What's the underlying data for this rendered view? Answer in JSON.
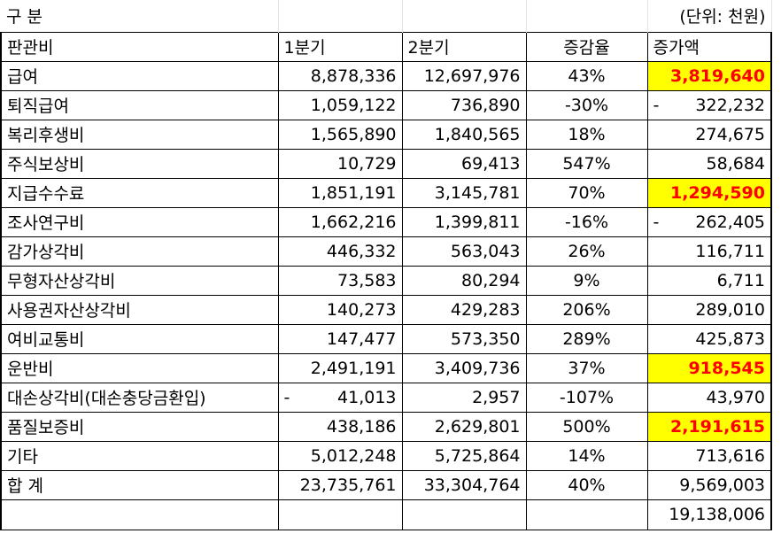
{
  "title_left": "구  분",
  "unit": "(단위: 천원)",
  "columns": [
    "판관비",
    "1분기",
    "2분기",
    "증감율",
    "증가액"
  ],
  "rows": [
    {
      "name": "급여",
      "q1": "8,878,336",
      "q2": "12,697,976",
      "rate": "43%",
      "inc": "3,819,640",
      "inc_neg": false,
      "q1_neg": false,
      "highlight": true
    },
    {
      "name": "퇴직급여",
      "q1": "1,059,122",
      "q2": "736,890",
      "rate": "-30%",
      "inc": "322,232",
      "inc_neg": true,
      "q1_neg": false,
      "highlight": false
    },
    {
      "name": "복리후생비",
      "q1": "1,565,890",
      "q2": "1,840,565",
      "rate": "18%",
      "inc": "274,675",
      "inc_neg": false,
      "q1_neg": false,
      "highlight": false
    },
    {
      "name": "주식보상비",
      "q1": "10,729",
      "q2": "69,413",
      "rate": "547%",
      "inc": "58,684",
      "inc_neg": false,
      "q1_neg": false,
      "highlight": false
    },
    {
      "name": "지급수수료",
      "q1": "1,851,191",
      "q2": "3,145,781",
      "rate": "70%",
      "inc": "1,294,590",
      "inc_neg": false,
      "q1_neg": false,
      "highlight": true
    },
    {
      "name": "조사연구비",
      "q1": "1,662,216",
      "q2": "1,399,811",
      "rate": "-16%",
      "inc": "262,405",
      "inc_neg": true,
      "q1_neg": false,
      "highlight": false
    },
    {
      "name": "감가상각비",
      "q1": "446,332",
      "q2": "563,043",
      "rate": "26%",
      "inc": "116,711",
      "inc_neg": false,
      "q1_neg": false,
      "highlight": false
    },
    {
      "name": "무형자산상각비",
      "q1": "73,583",
      "q2": "80,294",
      "rate": "9%",
      "inc": "6,711",
      "inc_neg": false,
      "q1_neg": false,
      "highlight": false
    },
    {
      "name": "사용권자산상각비",
      "q1": "140,273",
      "q2": "429,283",
      "rate": "206%",
      "inc": "289,010",
      "inc_neg": false,
      "q1_neg": false,
      "highlight": false
    },
    {
      "name": "여비교통비",
      "q1": "147,477",
      "q2": "573,350",
      "rate": "289%",
      "inc": "425,873",
      "inc_neg": false,
      "q1_neg": false,
      "highlight": false
    },
    {
      "name": "운반비",
      "q1": "2,491,191",
      "q2": "3,409,736",
      "rate": "37%",
      "inc": "918,545",
      "inc_neg": false,
      "q1_neg": false,
      "highlight": true
    },
    {
      "name": "대손상각비(대손충당금환입)",
      "q1": "41,013",
      "q2": "2,957",
      "rate": "-107%",
      "inc": "43,970",
      "inc_neg": false,
      "q1_neg": true,
      "highlight": false
    },
    {
      "name": "품질보증비",
      "q1": "438,186",
      "q2": "2,629,801",
      "rate": "500%",
      "inc": "2,191,615",
      "inc_neg": false,
      "q1_neg": false,
      "highlight": true
    },
    {
      "name": "기타",
      "q1": "5,012,248",
      "q2": "5,725,864",
      "rate": "14%",
      "inc": "713,616",
      "inc_neg": false,
      "q1_neg": false,
      "highlight": false
    }
  ],
  "total": {
    "name": "합  계",
    "q1": "23,735,761",
    "q2": "33,304,764",
    "rate": "40%",
    "inc": "9,569,003"
  },
  "extra_sum": "19,138,006",
  "neg_mark": "-",
  "colors": {
    "highlight_bg": "#ffff00",
    "highlight_text": "#ff0000"
  }
}
